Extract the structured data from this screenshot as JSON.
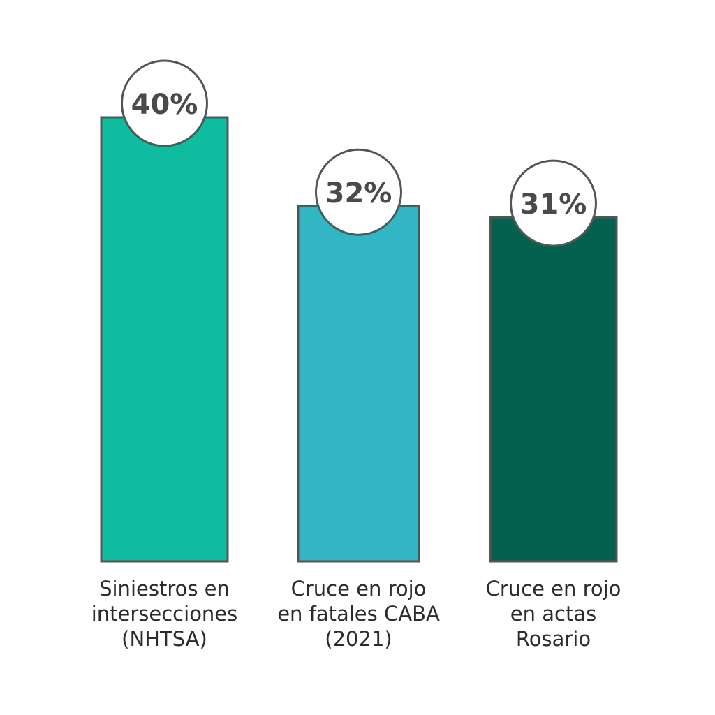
{
  "chart_data": {
    "type": "bar",
    "categories": [
      [
        "Siniestros en",
        "intersecciones",
        "(NHTSA)"
      ],
      [
        "Cruce en rojo",
        "en fatales CABA",
        "(2021)"
      ],
      [
        "Cruce en rojo",
        "en actas",
        "Rosario"
      ]
    ],
    "values": [
      40,
      32,
      31
    ],
    "value_labels": [
      "40%",
      "32%",
      "31%"
    ],
    "colors": [
      "#0fbc9f",
      "#33b6c4",
      "#046150"
    ],
    "ylim": [
      0,
      40
    ],
    "title": "",
    "xlabel": "",
    "ylabel": "",
    "grid": false,
    "legend": "none"
  }
}
